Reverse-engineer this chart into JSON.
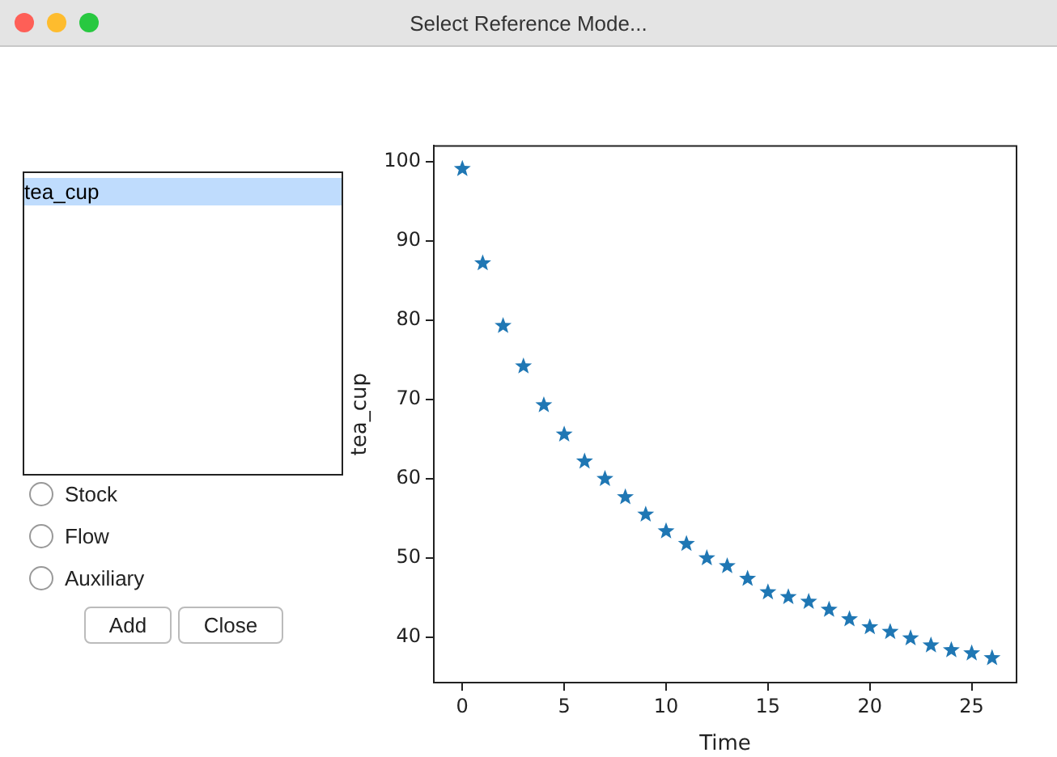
{
  "chart_data": {
    "type": "scatter",
    "title": "Select Reference Mode...",
    "xlabel": "Time",
    "ylabel": "tea_cup",
    "x": [
      0,
      1,
      2,
      3,
      4,
      5,
      6,
      7,
      8,
      9,
      10,
      11,
      12,
      13,
      14,
      15,
      16,
      17,
      18,
      19,
      20,
      21,
      22,
      23,
      24,
      25,
      26
    ],
    "series": [
      {
        "color": "#1f77b4",
        "values": [
          99.1,
          87.2,
          79.3,
          74.2,
          69.3,
          65.6,
          62.2,
          60.0,
          57.7,
          55.5,
          53.4,
          51.8,
          50.0,
          49.0,
          47.4,
          45.7,
          45.1,
          44.5,
          43.5,
          42.3,
          41.3,
          40.7,
          39.9,
          39.0,
          38.4,
          38.0,
          37.4
        ]
      }
    ],
    "xlim": [
      -1.4,
      27.2
    ],
    "ylim": [
      34.3,
      102
    ],
    "xticks": [
      0,
      5,
      10,
      15,
      20,
      25
    ],
    "yticks": [
      40,
      50,
      60,
      70,
      80,
      90,
      100
    ],
    "grid": false,
    "legend": false,
    "marker": "star",
    "annotations": [
      "tea_cup",
      "Stock",
      "Flow",
      "Auxiliary",
      "Add",
      "Close"
    ]
  }
}
